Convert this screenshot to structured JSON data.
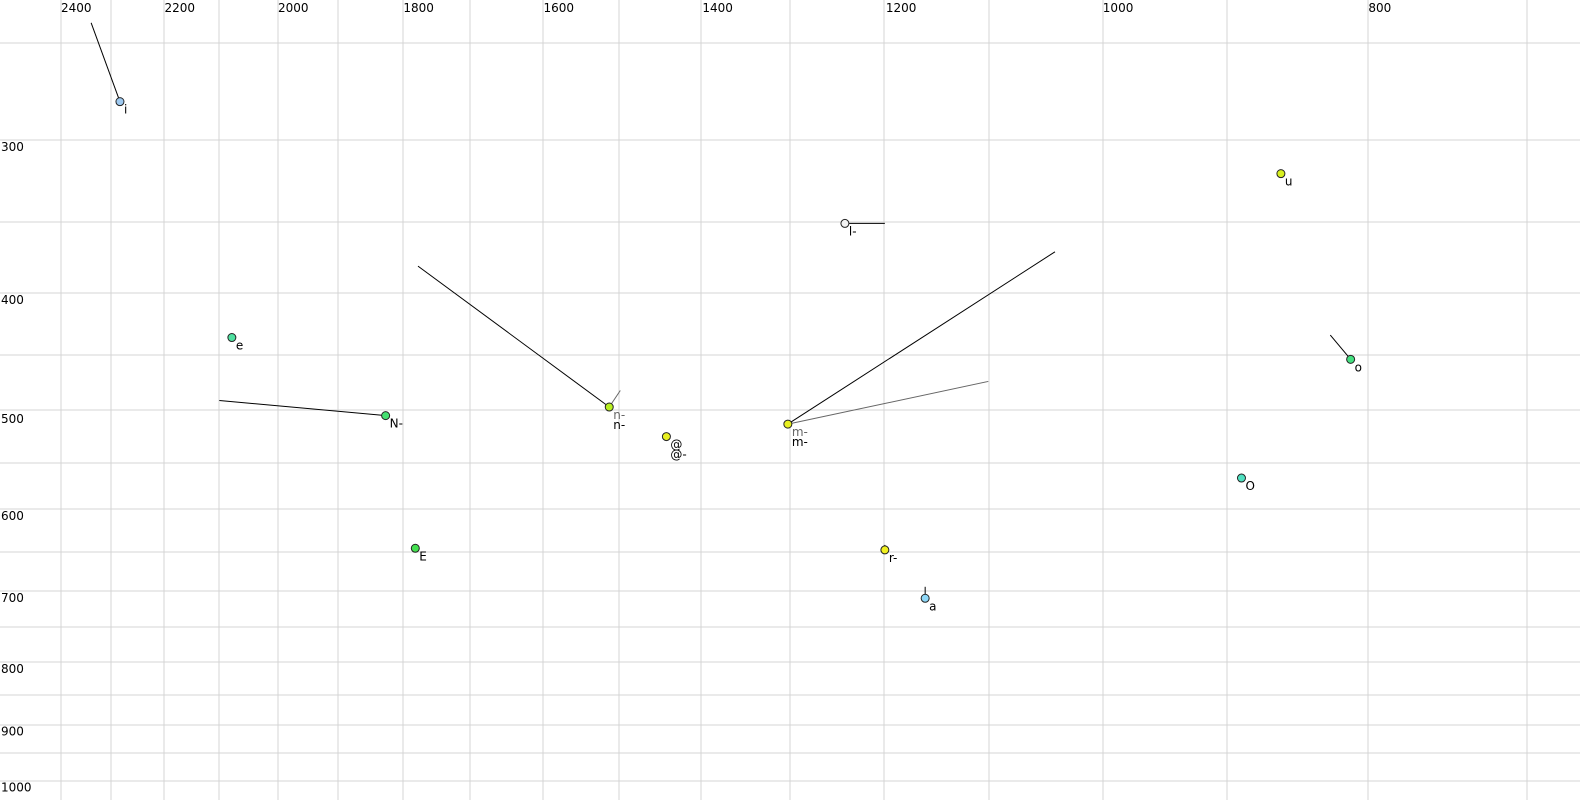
{
  "chart_data": {
    "type": "scatter",
    "title": "",
    "xlabel": "",
    "ylabel": "",
    "x_scale": "log",
    "y_scale": "log",
    "x_reversed": true,
    "xlim": [
      2500,
      750
    ],
    "ylim": [
      215,
      1020
    ],
    "grid": true,
    "x_ticks": [
      2400,
      2200,
      2000,
      1800,
      1600,
      1400,
      1200,
      1000,
      800
    ],
    "y_ticks": [
      300,
      400,
      500,
      600,
      700,
      800,
      900,
      1000
    ],
    "points": [
      {
        "label": "i",
        "x": 2284,
        "y": 276,
        "color": "#9ec9f0",
        "trail": [
          [
            2340,
            238
          ]
        ]
      },
      {
        "label": "e",
        "x": 2079,
        "y": 430,
        "color": "#4fe0a0"
      },
      {
        "label": "N-",
        "x": 1827,
        "y": 498,
        "color": "#44e070",
        "trail": [
          [
            2101,
            484
          ]
        ]
      },
      {
        "label": "E",
        "x": 1782,
        "y": 639,
        "color": "#44e050"
      },
      {
        "label": "n-",
        "x": 1514,
        "y": 490,
        "color": "#b8f020",
        "sublabel": "n-",
        "trail": [
          [
            1778,
            376
          ]
        ],
        "trail2": [
          [
            1500,
            475
          ]
        ]
      },
      {
        "label": "@-",
        "x": 1443,
        "y": 518,
        "color": "#e8f020",
        "sublabel": "@"
      },
      {
        "label": "m-",
        "x": 1303,
        "y": 506,
        "color": "#e8f020",
        "sublabel": "m-",
        "trail": [
          [
            1041,
            366
          ]
        ],
        "trail2": [
          [
            1101,
            467
          ]
        ]
      },
      {
        "label": "l-",
        "x": 1242,
        "y": 347,
        "color": "#f4f4f4",
        "trail": [
          [
            1201,
            347
          ]
        ]
      },
      {
        "label": "r-",
        "x": 1201,
        "y": 641,
        "color": "#f0f020",
        "trail": [
          [
            1201,
            635
          ]
        ]
      },
      {
        "label": "a",
        "x": 1161,
        "y": 702,
        "color": "#8ed8f8",
        "trail": [
          [
            1161,
            687
          ]
        ]
      },
      {
        "label": "u",
        "x": 861,
        "y": 316,
        "color": "#d8f020"
      },
      {
        "label": "o",
        "x": 812,
        "y": 448,
        "color": "#44e080",
        "trail": [
          [
            826,
            428
          ]
        ]
      },
      {
        "label": "O",
        "x": 890,
        "y": 560,
        "color": "#4fe0c0"
      }
    ]
  }
}
